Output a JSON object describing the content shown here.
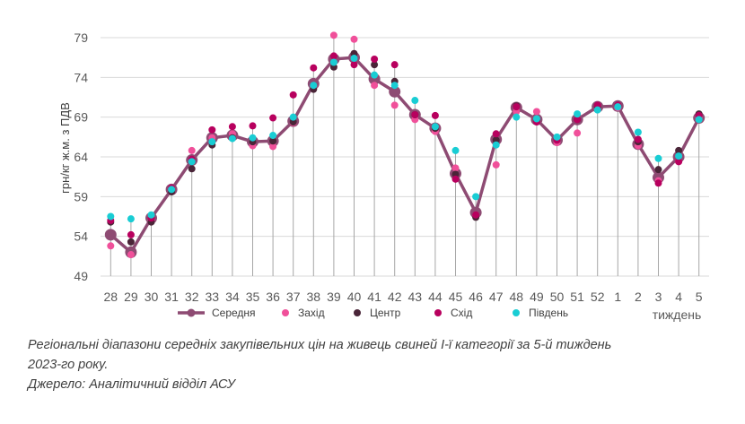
{
  "chart_data": {
    "type": "line",
    "ylabel": "грн/кг ж.м. з ПДВ",
    "xlabel": "тиждень",
    "ylim": [
      49,
      79
    ],
    "yticks": [
      49,
      54,
      59,
      64,
      69,
      74,
      79
    ],
    "grid": "horizontal",
    "legend_position": "bottom",
    "categories": [
      "28",
      "29",
      "30",
      "31",
      "32",
      "33",
      "34",
      "35",
      "36",
      "37",
      "38",
      "39",
      "40",
      "41",
      "42",
      "43",
      "44",
      "45",
      "46",
      "47",
      "48",
      "49",
      "50",
      "51",
      "52",
      "1",
      "2",
      "3",
      "4",
      "5"
    ],
    "series": [
      {
        "name": "Середня",
        "color": "#8e4b73",
        "style": "line-marker",
        "values": [
          54.2,
          52.0,
          56.3,
          59.9,
          63.6,
          66.4,
          66.7,
          65.9,
          66.0,
          68.5,
          73.2,
          76.3,
          76.5,
          73.8,
          72.2,
          69.3,
          67.6,
          61.9,
          57.0,
          66.2,
          70.2,
          68.7,
          66.1,
          68.7,
          70.3,
          70.4,
          65.6,
          61.4,
          64.0,
          68.9
        ]
      },
      {
        "name": "Захід",
        "color": "#f0509a",
        "style": "point",
        "values": [
          52.8,
          51.7,
          55.9,
          60.1,
          64.8,
          66.4,
          66.9,
          65.4,
          65.3,
          68.3,
          72.9,
          79.3,
          78.8,
          73.0,
          70.5,
          68.7,
          67.2,
          62.6,
          56.6,
          63.0,
          69.7,
          69.7,
          65.8,
          67.0,
          70.0,
          70.2,
          65.4,
          61.0,
          63.4,
          69.0
        ]
      },
      {
        "name": "Центр",
        "color": "#4a2538",
        "style": "point",
        "values": [
          55.8,
          53.3,
          55.8,
          59.6,
          62.5,
          65.5,
          66.4,
          65.9,
          66.0,
          68.4,
          72.5,
          75.3,
          77.0,
          75.6,
          73.5,
          69.3,
          67.6,
          61.8,
          56.4,
          66.1,
          70.4,
          68.6,
          66.3,
          68.7,
          70.3,
          70.4,
          65.9,
          62.4,
          64.8,
          69.4
        ]
      },
      {
        "name": "Схід",
        "color": "#b8005e",
        "style": "point",
        "values": [
          56.0,
          54.2,
          56.3,
          60.1,
          63.7,
          67.4,
          67.8,
          67.9,
          68.9,
          71.8,
          75.2,
          76.7,
          75.6,
          76.3,
          75.6,
          69.3,
          69.2,
          61.2,
          56.7,
          66.9,
          70.3,
          68.4,
          66.1,
          68.7,
          70.5,
          70.5,
          66.2,
          60.7,
          63.4,
          69.2
        ]
      },
      {
        "name": "Південь",
        "color": "#19cdd4",
        "style": "point",
        "values": [
          56.5,
          56.2,
          56.7,
          59.9,
          63.4,
          65.9,
          66.3,
          66.4,
          66.7,
          69.0,
          73.0,
          75.9,
          76.4,
          74.3,
          73.0,
          71.1,
          67.8,
          64.8,
          59.0,
          65.5,
          69.0,
          68.8,
          66.5,
          69.4,
          69.9,
          70.3,
          67.1,
          63.8,
          64.1,
          68.7
        ]
      }
    ]
  },
  "caption": {
    "line1": "Регіональні діапазони середніх закупівельних цін на живець свиней І-ї категорії за 5-й тиждень",
    "line2": "2023-го року.",
    "line3": "Джерело: Аналітичний відділ АСУ"
  }
}
